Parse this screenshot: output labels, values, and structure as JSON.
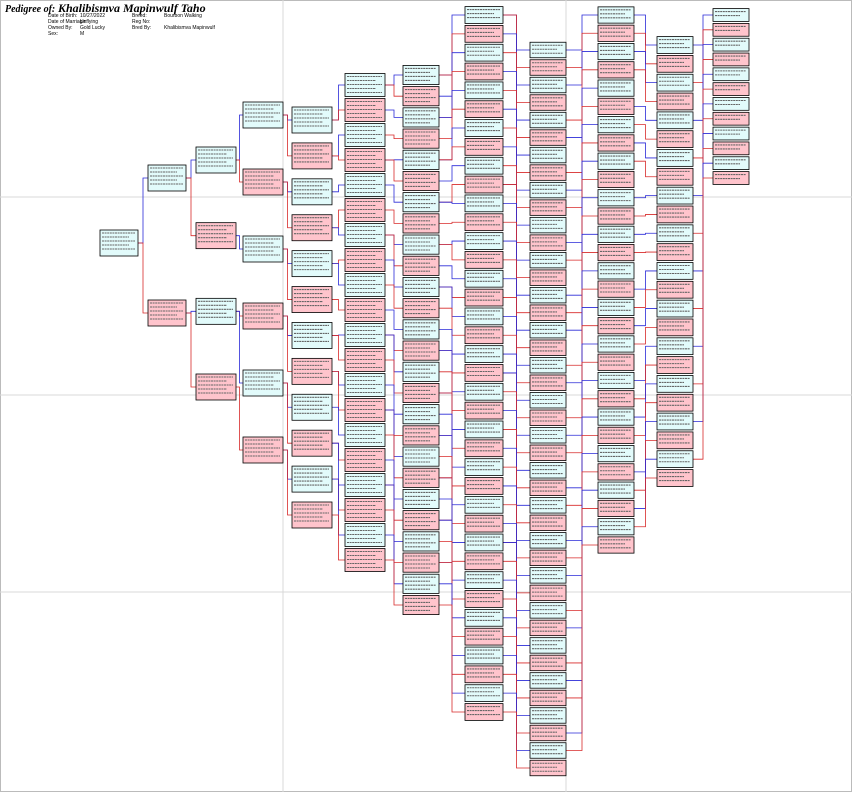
{
  "header": {
    "label": "Pedigree of:",
    "name": "Khalibismva Mapinwulf Taho",
    "fields": [
      {
        "label": "Date of Birth:",
        "value": "10/27/2022"
      },
      {
        "label": "Date of Marriage:",
        "value": "Unflying"
      },
      {
        "label": "Owned By:",
        "value": "Gold Lucky"
      },
      {
        "label": "Sex:",
        "value": "M"
      },
      {
        "label": "Breed:",
        "value": "Bourbon Walking"
      },
      {
        "label": "Reg No:"
      },
      {
        "label": "Bred By:",
        "value": "Khalibismva Mapinwulf"
      }
    ]
  }
}
